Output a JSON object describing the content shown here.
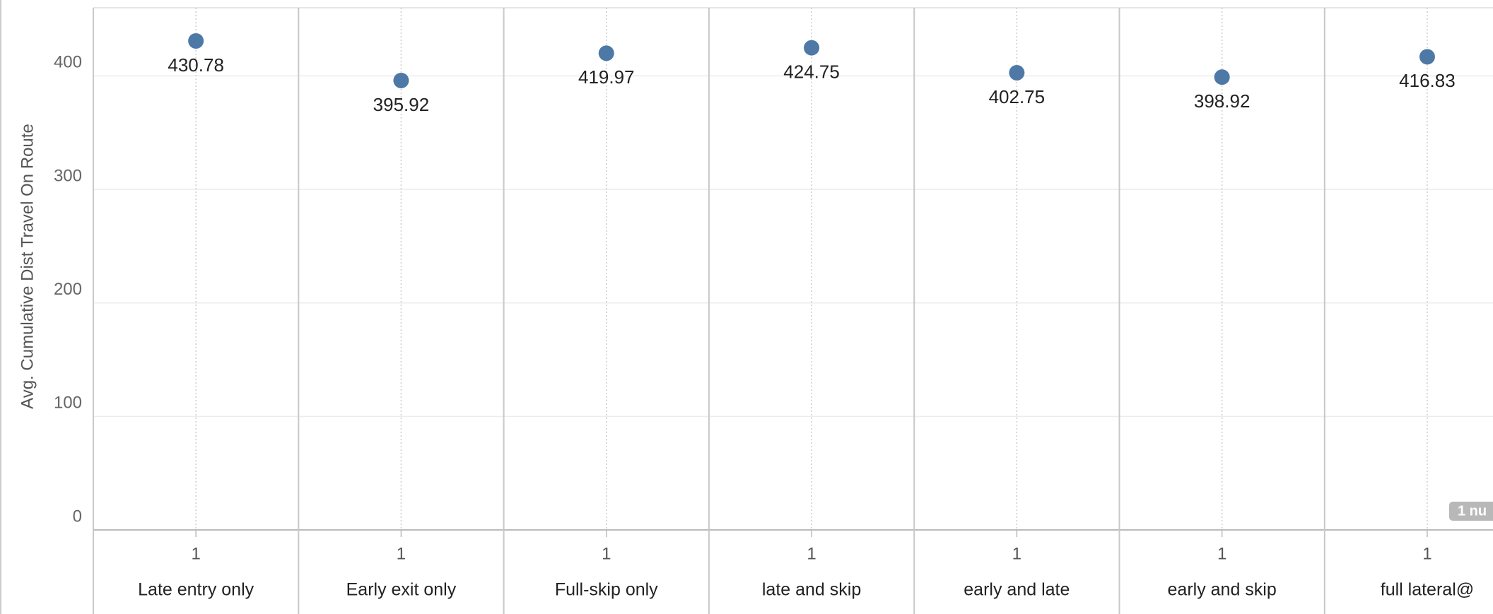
{
  "chart_data": {
    "type": "dot",
    "y_label": "Avg. Cumulative Dist Travel On Route",
    "categories": [
      "Late entry only",
      "Early exit only",
      "Full-skip only",
      "late and skip",
      "early and late",
      "early and skip",
      "full lateral@"
    ],
    "subheaders": [
      "1",
      "1",
      "1",
      "1",
      "1",
      "1",
      "1"
    ],
    "values": [
      430.78,
      395.92,
      419.97,
      424.75,
      402.75,
      398.92,
      416.83
    ],
    "color": "#4e79a7",
    "ylim": [
      0,
      460
    ],
    "yticks": [
      0,
      100,
      200,
      300,
      400
    ],
    "grid": true,
    "null_indicator": "1 nu"
  }
}
